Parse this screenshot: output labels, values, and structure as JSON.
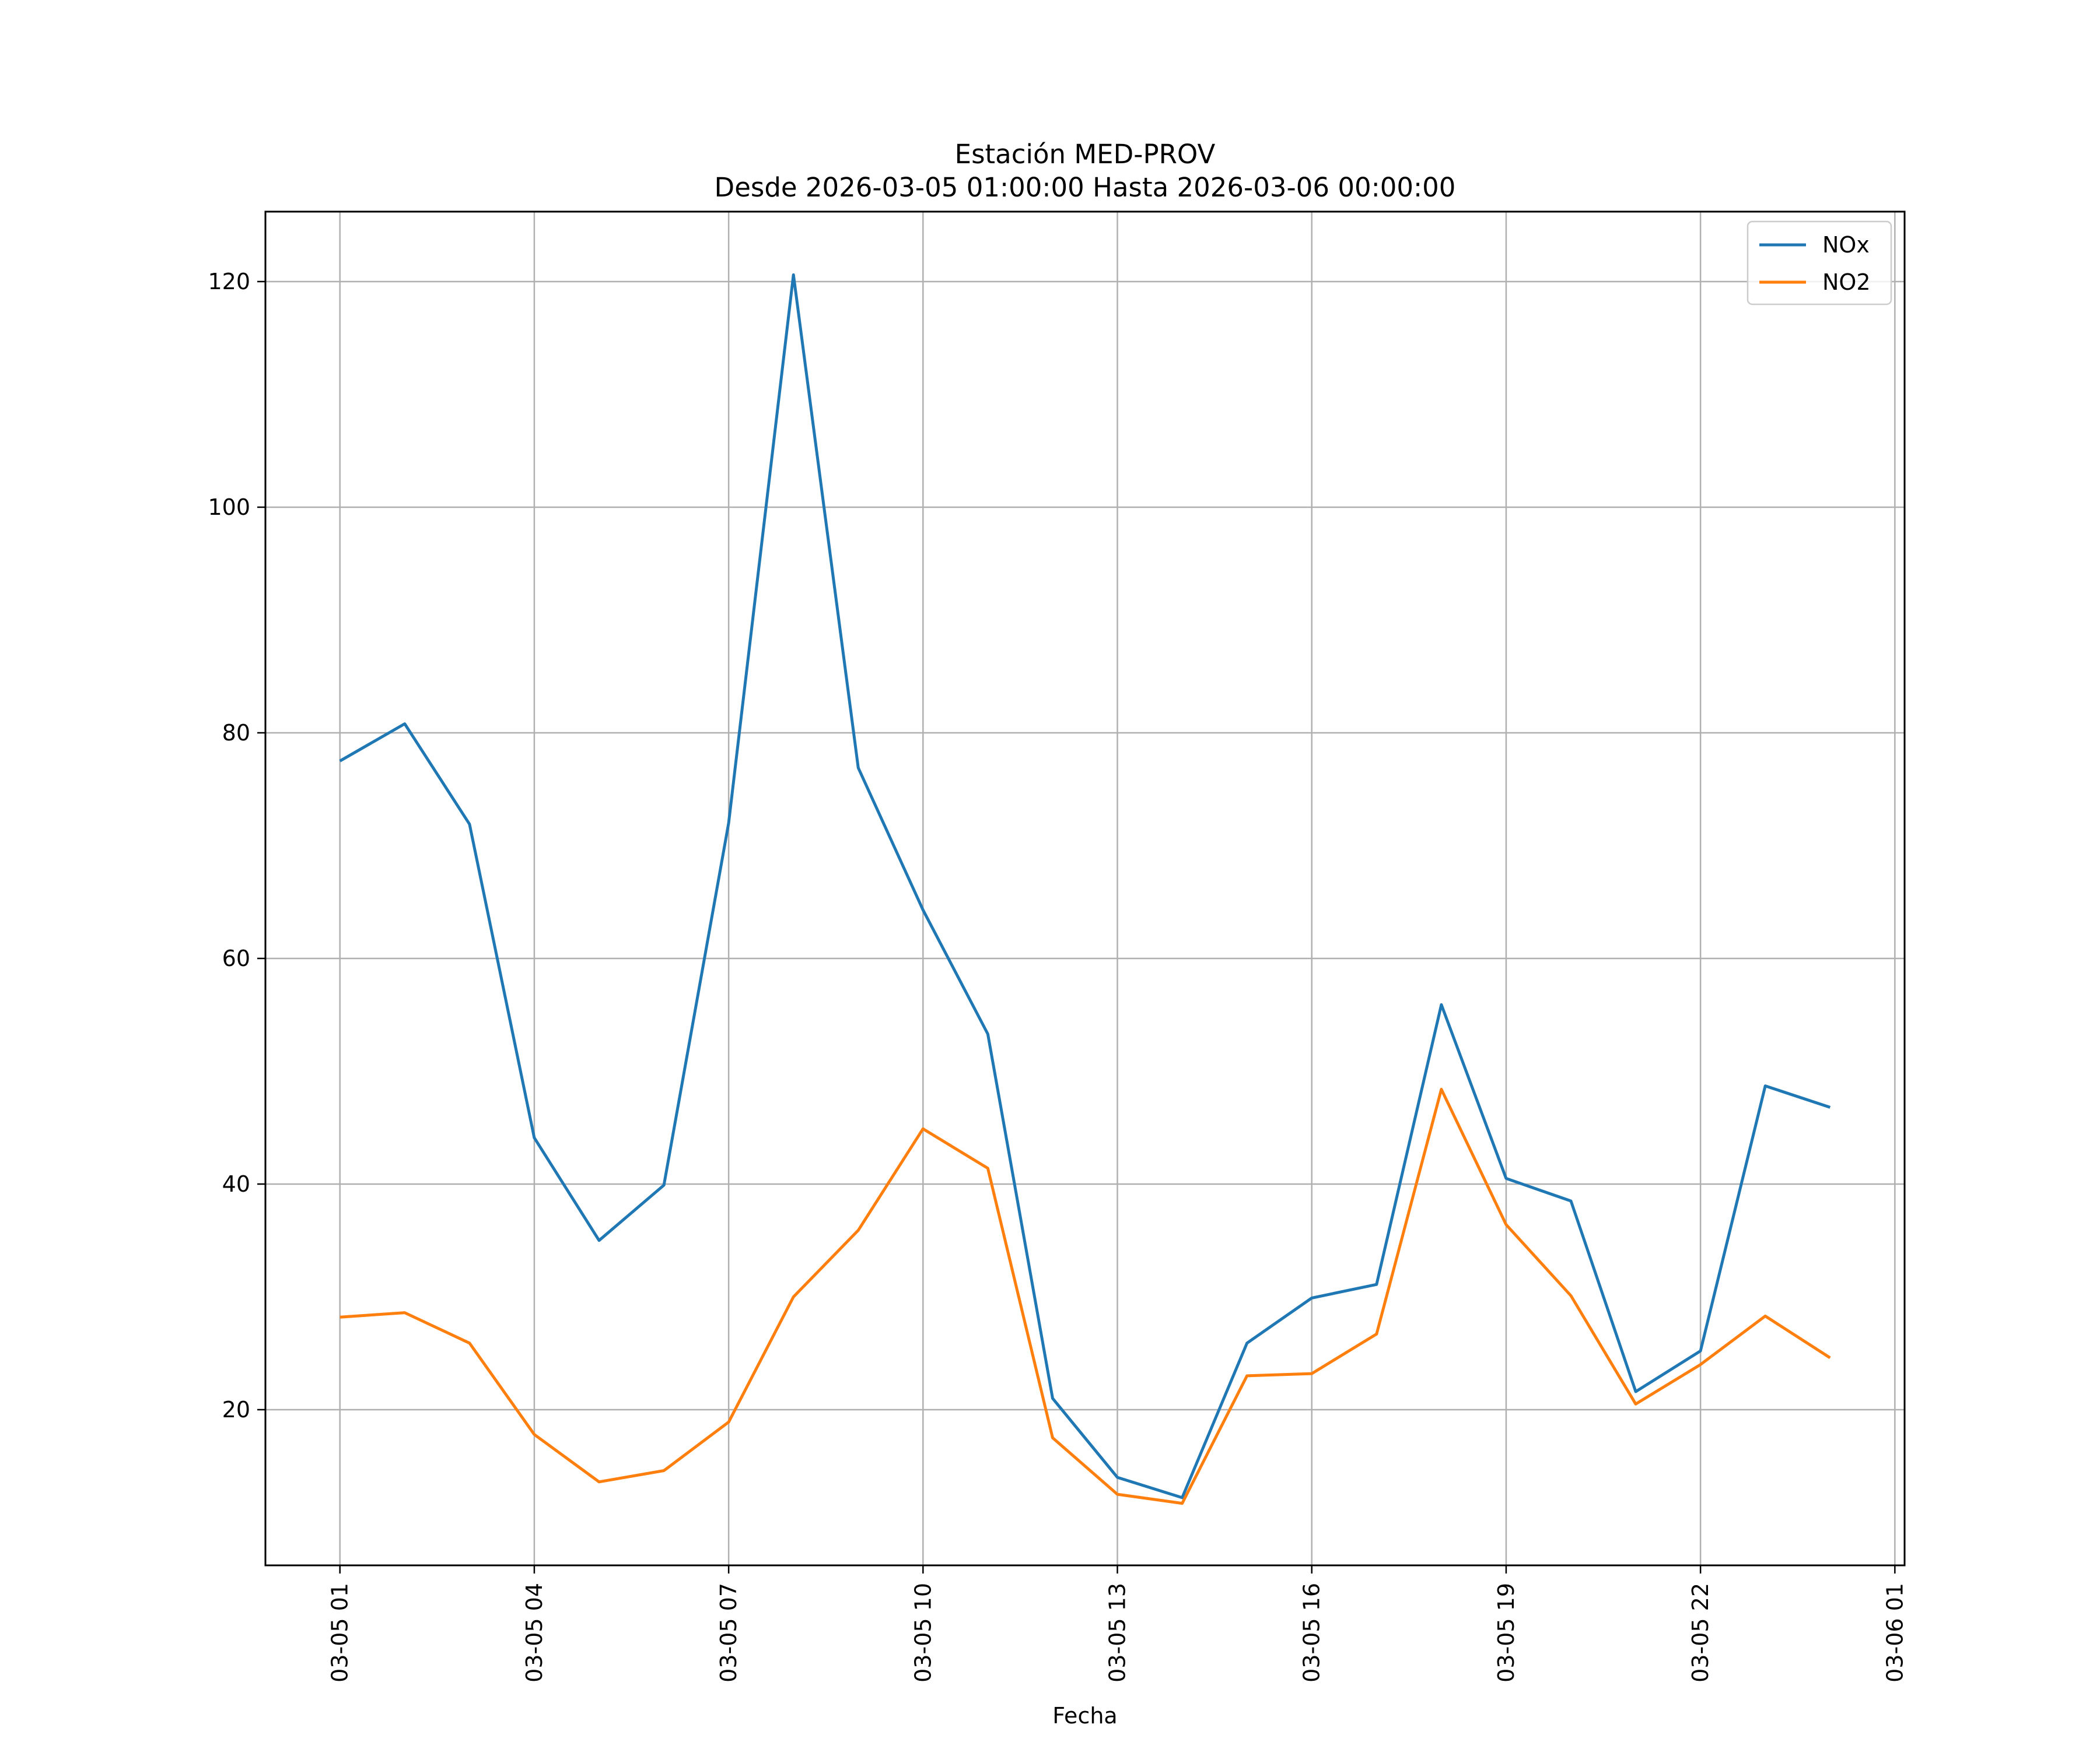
{
  "chart_data": {
    "type": "line",
    "title": "Estación MED-PROV",
    "subtitle": "Desde 2026-03-05 01:00:00 Hasta 2026-03-06 00:00:00",
    "xlabel": "Fecha",
    "ylabel": "",
    "x": [
      "03-05 01",
      "03-05 02",
      "03-05 03",
      "03-05 04",
      "03-05 05",
      "03-05 06",
      "03-05 07",
      "03-05 08",
      "03-05 09",
      "03-05 10",
      "03-05 11",
      "03-05 12",
      "03-05 13",
      "03-05 14",
      "03-05 15",
      "03-05 16",
      "03-05 17",
      "03-05 18",
      "03-05 19",
      "03-05 20",
      "03-05 21",
      "03-05 22",
      "03-05 23",
      "03-06 00"
    ],
    "x_hours": [
      1,
      2,
      3,
      4,
      5,
      6,
      7,
      8,
      9,
      10,
      11,
      12,
      13,
      14,
      15,
      16,
      17,
      18,
      19,
      20,
      21,
      22,
      23,
      24
    ],
    "xlim": [
      -0.15,
      25.15
    ],
    "xticks": [
      {
        "hour": 1,
        "label": "03-05 01"
      },
      {
        "hour": 4,
        "label": "03-05 04"
      },
      {
        "hour": 7,
        "label": "03-05 07"
      },
      {
        "hour": 10,
        "label": "03-05 10"
      },
      {
        "hour": 13,
        "label": "03-05 13"
      },
      {
        "hour": 16,
        "label": "03-05 16"
      },
      {
        "hour": 19,
        "label": "03-05 19"
      },
      {
        "hour": 22,
        "label": "03-05 22"
      },
      {
        "hour": 25,
        "label": "03-06 01"
      }
    ],
    "ylim": [
      6.2,
      126.2
    ],
    "yticks": [
      20,
      40,
      60,
      80,
      100,
      120
    ],
    "grid": true,
    "legend_position": "top-right",
    "series": [
      {
        "name": "NOx",
        "color": "#1f77b4",
        "values": [
          77.5,
          80.8,
          71.9,
          44.1,
          35.0,
          39.9,
          72.0,
          120.6,
          76.9,
          64.3,
          53.3,
          21.0,
          14.0,
          12.2,
          25.9,
          29.9,
          31.1,
          55.9,
          40.5,
          38.5,
          21.6,
          25.2,
          48.7,
          46.8
        ]
      },
      {
        "name": "NO2",
        "color": "#ff7f0e",
        "values": [
          28.2,
          28.6,
          25.9,
          17.8,
          13.6,
          14.6,
          18.9,
          30.0,
          35.9,
          44.9,
          41.4,
          17.5,
          12.5,
          11.7,
          23.0,
          23.2,
          26.7,
          48.4,
          36.4,
          30.1,
          20.5,
          24.0,
          28.3,
          24.6
        ]
      }
    ]
  }
}
